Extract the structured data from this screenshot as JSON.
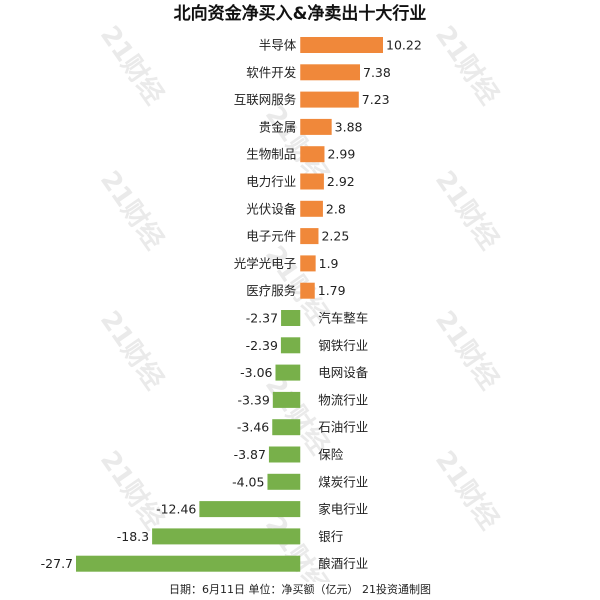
{
  "chart_data": {
    "type": "bar",
    "orientation": "horizontal",
    "title": "北向资金净买入&净卖出十大行业",
    "categories": [
      "半导体",
      "软件开发",
      "互联网服务",
      "贵金属",
      "生物制品",
      "电力行业",
      "光伏设备",
      "电子元件",
      "光学光电子",
      "医疗服务",
      "汽车整车",
      "钢铁行业",
      "电网设备",
      "物流行业",
      "石油行业",
      "保险",
      "煤炭行业",
      "家电行业",
      "银行",
      "酿酒行业"
    ],
    "values": [
      10.22,
      7.38,
      7.23,
      3.88,
      2.99,
      2.92,
      2.8,
      2.25,
      1.9,
      1.79,
      -2.37,
      -2.39,
      -3.06,
      -3.39,
      -3.46,
      -3.87,
      -4.05,
      -12.46,
      -18.3,
      -27.7
    ],
    "value_labels": [
      "10.22",
      "7.38",
      "7.23",
      "3.88",
      "2.99",
      "2.92",
      "2.8",
      "2.25",
      "1.9",
      "1.79",
      "-2.37",
      "-2.39",
      "-3.06",
      "-3.39",
      "-3.46",
      "-3.87",
      "-4.05",
      "-12.46",
      "-18.3",
      "-27.7"
    ],
    "positive_color": "#f0883a",
    "negative_color": "#78b04a",
    "xlim": [
      -27.7,
      10.22
    ],
    "grid": false,
    "legend": "none"
  },
  "footer": "日期：6月11日 单位：净买额（亿元） 21投资通制图",
  "watermark": "21财经"
}
